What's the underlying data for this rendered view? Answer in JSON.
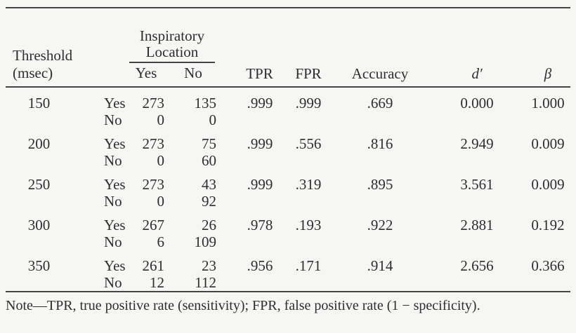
{
  "table": {
    "header": {
      "threshold_line1": "Threshold",
      "threshold_line2": "(msec)",
      "spanner_line1": "Inspiratory",
      "spanner_line2": "Location",
      "col_yes": "Yes",
      "col_no": "No",
      "col_tpr": "TPR",
      "col_fpr": "FPR",
      "col_accuracy": "Accuracy",
      "col_dprime": "d′",
      "col_beta": "β"
    },
    "groups": [
      {
        "threshold": "150",
        "yes_row": {
          "label": "Yes",
          "insp_yes": "273",
          "insp_no": "135"
        },
        "no_row": {
          "label": "No",
          "insp_yes": "0",
          "insp_no": "0"
        },
        "tpr": ".999",
        "fpr": ".999",
        "accuracy": ".669",
        "dprime": "0.000",
        "beta": "1.000"
      },
      {
        "threshold": "200",
        "yes_row": {
          "label": "Yes",
          "insp_yes": "273",
          "insp_no": "75"
        },
        "no_row": {
          "label": "No",
          "insp_yes": "0",
          "insp_no": "60"
        },
        "tpr": ".999",
        "fpr": ".556",
        "accuracy": ".816",
        "dprime": "2.949",
        "beta": "0.009"
      },
      {
        "threshold": "250",
        "yes_row": {
          "label": "Yes",
          "insp_yes": "273",
          "insp_no": "43"
        },
        "no_row": {
          "label": "No",
          "insp_yes": "0",
          "insp_no": "92"
        },
        "tpr": ".999",
        "fpr": ".319",
        "accuracy": ".895",
        "dprime": "3.561",
        "beta": "0.009"
      },
      {
        "threshold": "300",
        "yes_row": {
          "label": "Yes",
          "insp_yes": "267",
          "insp_no": "26"
        },
        "no_row": {
          "label": "No",
          "insp_yes": "6",
          "insp_no": "109"
        },
        "tpr": ".978",
        "fpr": ".193",
        "accuracy": ".922",
        "dprime": "2.881",
        "beta": "0.192"
      },
      {
        "threshold": "350",
        "yes_row": {
          "label": "Yes",
          "insp_yes": "261",
          "insp_no": "23"
        },
        "no_row": {
          "label": "No",
          "insp_yes": "12",
          "insp_no": "112"
        },
        "tpr": ".956",
        "fpr": ".171",
        "accuracy": ".914",
        "dprime": "2.656",
        "beta": "0.366"
      }
    ],
    "note": "Note—TPR, true positive rate (sensitivity); FPR, false positive rate (1 − specificity).",
    "colors": {
      "background": "#f6f6f5",
      "text": "#2e2e2e",
      "rule": "#454545"
    }
  }
}
